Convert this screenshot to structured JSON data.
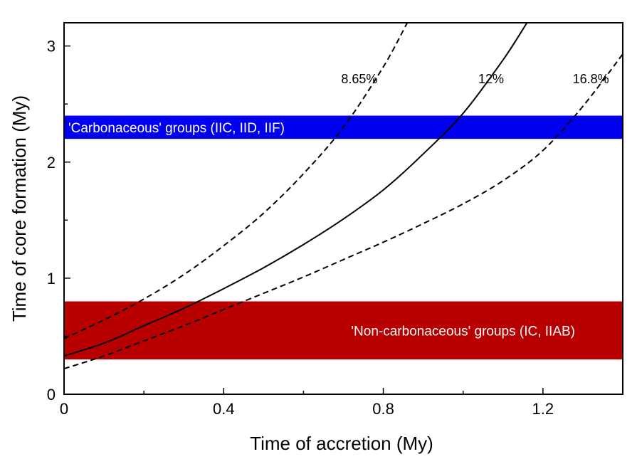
{
  "chart_data": {
    "type": "line",
    "title": "",
    "xlabel": "Time of accretion (My)",
    "ylabel": "Time of core formation (My)",
    "xlim": [
      0,
      1.4
    ],
    "ylim": [
      0,
      3.2
    ],
    "xticks": [
      0,
      0.4,
      0.8,
      1.2
    ],
    "xtick_labels": [
      "0",
      "0.4",
      "0.8",
      "1.2"
    ],
    "xminor": [
      0.2,
      0.6,
      1.0,
      1.4
    ],
    "yticks": [
      0,
      1,
      2,
      3
    ],
    "ytick_labels": [
      "0",
      "1",
      "2",
      "3"
    ],
    "yminor": [
      0.5,
      1.5,
      2.5
    ],
    "grid": false,
    "bands": [
      {
        "name": "carbonaceous-band",
        "label": "'Carbonaceous' groups (IIC, IID, IIF)",
        "y_min": 2.2,
        "y_max": 2.4,
        "color": "#0000ee",
        "label_position": "left"
      },
      {
        "name": "non-carbonaceous-band",
        "label": "'Non-carbonaceous' groups (IC, IIAB)",
        "y_min": 0.3,
        "y_max": 0.8,
        "color": "#b80000",
        "label_position": "right"
      }
    ],
    "series": [
      {
        "name": "8.65%",
        "style": "dashed",
        "x": [
          0,
          0.1,
          0.2,
          0.3,
          0.4,
          0.5,
          0.6,
          0.7,
          0.8,
          0.86
        ],
        "y": [
          0.48,
          0.64,
          0.82,
          1.03,
          1.28,
          1.56,
          1.9,
          2.3,
          2.82,
          3.2
        ]
      },
      {
        "name": "12%",
        "style": "solid",
        "x": [
          0,
          0.1,
          0.2,
          0.3,
          0.4,
          0.5,
          0.6,
          0.7,
          0.8,
          0.9,
          1.0,
          1.1,
          1.16
        ],
        "y": [
          0.33,
          0.44,
          0.59,
          0.74,
          0.91,
          1.09,
          1.29,
          1.51,
          1.76,
          2.07,
          2.42,
          2.88,
          3.2
        ]
      },
      {
        "name": "16.8%",
        "style": "dashed",
        "x": [
          0,
          0.1,
          0.2,
          0.3,
          0.4,
          0.5,
          0.6,
          0.7,
          0.8,
          0.9,
          1.0,
          1.1,
          1.2,
          1.3,
          1.4
        ],
        "y": [
          0.22,
          0.33,
          0.46,
          0.59,
          0.73,
          0.87,
          1.01,
          1.16,
          1.31,
          1.47,
          1.64,
          1.84,
          2.1,
          2.48,
          2.93
        ]
      }
    ],
    "curve_labels": [
      {
        "text": "8.65%",
        "x": 0.74,
        "y": 2.68
      },
      {
        "text": "12%",
        "x": 1.07,
        "y": 2.68
      },
      {
        "text": "16.8%",
        "x": 1.32,
        "y": 2.68
      }
    ]
  }
}
